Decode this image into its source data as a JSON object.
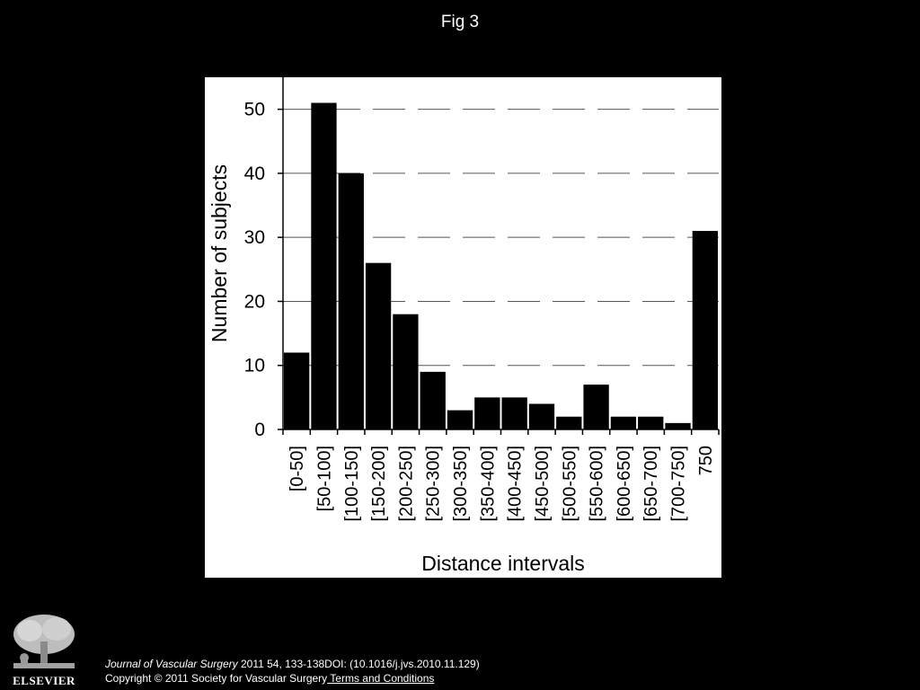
{
  "slide": {
    "title": "Fig 3"
  },
  "chart_data": {
    "type": "bar",
    "title": "",
    "xlabel": "Distance intervals",
    "ylabel": "Number of subjects",
    "ylim": [
      0,
      55
    ],
    "yticks": [
      0,
      10,
      20,
      30,
      40,
      50
    ],
    "grid": "horizontal dashed",
    "categories": [
      "[0-50]",
      "[50-100]",
      "[100-150]",
      "[150-200]",
      "[200-250]",
      "[250-300]",
      "[300-350]",
      "[350-400]",
      "[400-450]",
      "[450-500]",
      "[500-550]",
      "[550-600]",
      "[600-650]",
      "[650-700]",
      "[700-750]",
      "750"
    ],
    "values": [
      12,
      51,
      40,
      26,
      18,
      9,
      3,
      5,
      5,
      4,
      2,
      7,
      2,
      2,
      1,
      31
    ],
    "bar_color": "#000000"
  },
  "footer": {
    "journal": "Journal of Vascular Surgery",
    "citation": " 2011 54, 133-138DOI: (10.1016/j.jvs.2010.11.129)",
    "copyright": "Copyright © 2011 Society for Vascular Surgery",
    "terms_link": " Terms and Conditions"
  },
  "logo": {
    "name": "elsevier-logo",
    "label": "ELSEVIER"
  }
}
